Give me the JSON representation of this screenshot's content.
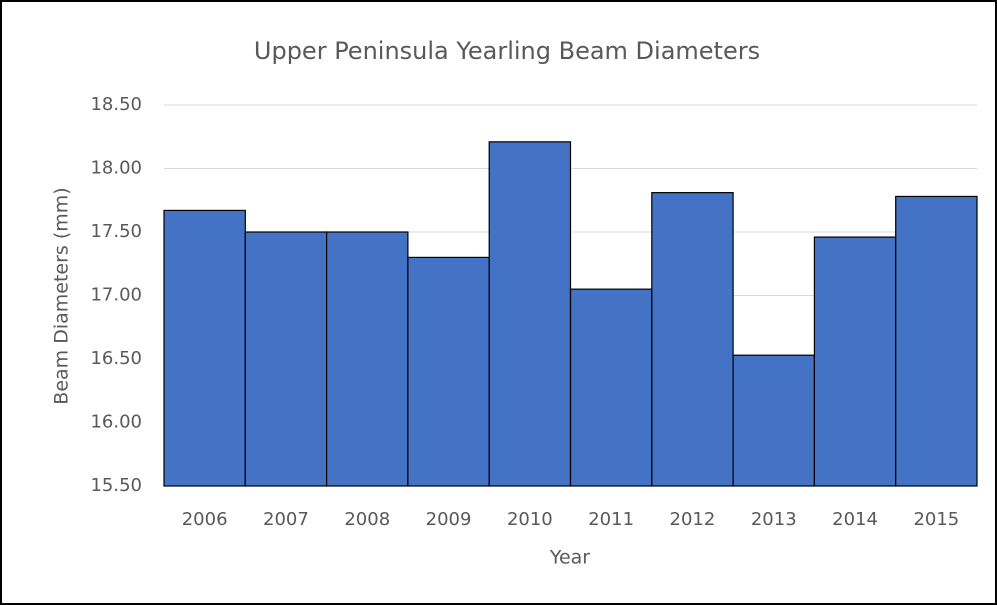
{
  "chart_data": {
    "type": "bar",
    "title": "Upper Peninsula Yearling Beam Diameters",
    "x_label": "Year",
    "y_label": "Beam Diameters (mm)",
    "categories": [
      "2006",
      "2007",
      "2008",
      "2009",
      "2010",
      "2011",
      "2012",
      "2013",
      "2014",
      "2015"
    ],
    "values": [
      17.67,
      17.5,
      17.5,
      17.3,
      18.21,
      17.05,
      17.81,
      16.53,
      17.46,
      17.78
    ],
    "color": "#4472c4",
    "ylim": [
      15.5,
      18.5
    ],
    "yticks": [
      {
        "value": 15.5,
        "label": "15.50"
      },
      {
        "value": 16,
        "label": "16.00"
      },
      {
        "value": 16.5,
        "label": "16.50"
      },
      {
        "value": 17,
        "label": "17.00"
      },
      {
        "value": 17.5,
        "label": "17.50"
      },
      {
        "value": 18,
        "label": "18.00"
      },
      {
        "value": 18.5,
        "label": "18.50"
      }
    ],
    "grid": true
  }
}
